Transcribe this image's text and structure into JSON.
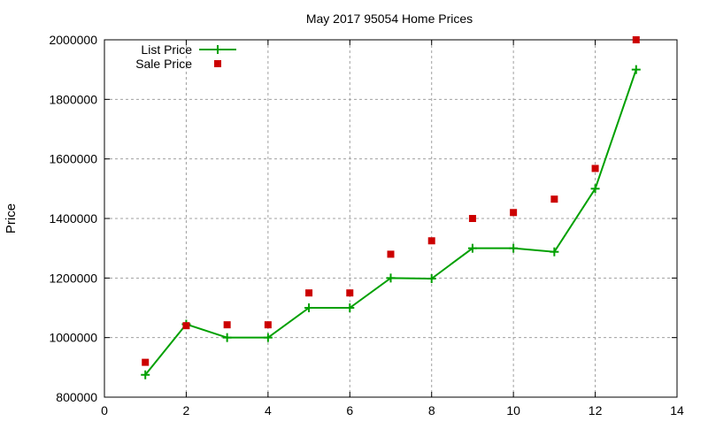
{
  "chart_data": {
    "type": "line",
    "title": "May 2017 95054 Home Prices",
    "xlabel": "",
    "ylabel": "Price",
    "xlim": [
      0,
      14
    ],
    "ylim": [
      800000,
      2000000
    ],
    "xticks": [
      0,
      2,
      4,
      6,
      8,
      10,
      12,
      14
    ],
    "yticks": [
      800000,
      1000000,
      1200000,
      1400000,
      1600000,
      1800000,
      2000000
    ],
    "grid": true,
    "legend_position": "top-left",
    "x": [
      1,
      2,
      3,
      4,
      5,
      6,
      7,
      8,
      9,
      10,
      11,
      12,
      13
    ],
    "series": [
      {
        "name": "List Price",
        "style": "linespoints",
        "marker": "plus",
        "color": "#00a000",
        "values": [
          875000,
          1045000,
          1000000,
          1000000,
          1100000,
          1100000,
          1200000,
          1198000,
          1300000,
          1300000,
          1288000,
          1500000,
          1900000
        ]
      },
      {
        "name": "Sale Price",
        "style": "points",
        "marker": "square",
        "color": "#cc0000",
        "values": [
          917000,
          1040000,
          1043000,
          1043000,
          1150000,
          1150000,
          1280000,
          1325000,
          1400000,
          1420000,
          1465000,
          1568000,
          2000000
        ]
      }
    ]
  }
}
